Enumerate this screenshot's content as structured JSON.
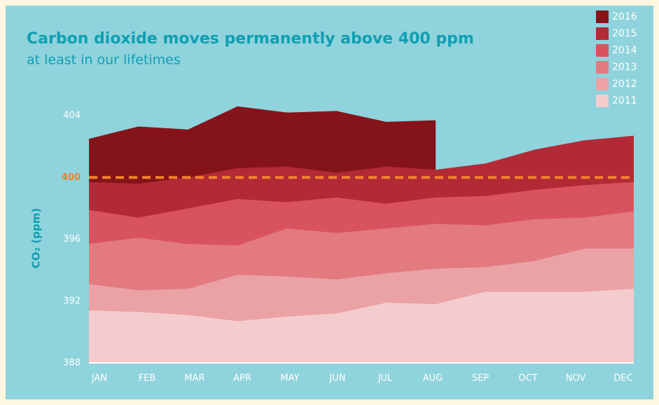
{
  "chart_data": {
    "type": "area",
    "title": "Carbon dioxide moves permanently above 400 ppm",
    "subtitle": "at least in our lifetimes",
    "y_label": "CO₂ (ppm)",
    "categories": [
      "JAN",
      "FEB",
      "MAR",
      "APR",
      "MAY",
      "JUN",
      "JUL",
      "AUG",
      "SEP",
      "OCT",
      "NOV",
      "DEC"
    ],
    "series": [
      {
        "name": "2016",
        "color": "#85141a",
        "values": [
          402.5,
          403.3,
          403.1,
          404.6,
          404.2,
          404.3,
          403.6,
          403.7,
          null,
          null,
          null,
          null
        ]
      },
      {
        "name": "2015",
        "color": "#b22a36",
        "values": [
          399.7,
          399.6,
          400.0,
          400.6,
          400.7,
          400.3,
          400.7,
          400.5,
          400.9,
          401.8,
          402.4,
          402.7
        ]
      },
      {
        "name": "2014",
        "color": "#d9535f",
        "values": [
          397.9,
          397.4,
          398.0,
          398.6,
          398.4,
          398.7,
          398.3,
          398.7,
          398.8,
          399.2,
          399.5,
          399.7
        ]
      },
      {
        "name": "2013",
        "color": "#e27a80",
        "values": [
          395.7,
          396.1,
          395.7,
          395.6,
          396.7,
          396.4,
          396.7,
          397.0,
          396.9,
          397.3,
          397.4,
          397.8
        ]
      },
      {
        "name": "2012",
        "color": "#eaa2a5",
        "values": [
          393.1,
          392.7,
          392.8,
          393.7,
          393.6,
          393.4,
          393.8,
          394.1,
          394.2,
          394.6,
          395.4,
          395.4
        ]
      },
      {
        "name": "2011",
        "color": "#f5cccd",
        "values": [
          391.4,
          391.3,
          391.1,
          390.7,
          391.0,
          391.2,
          391.9,
          391.8,
          392.6,
          392.6,
          392.6,
          392.8
        ]
      }
    ],
    "ylim": [
      388,
      404
    ],
    "yticks": [
      388,
      392,
      396,
      400,
      404
    ],
    "reference_line": 400,
    "reference_color": "#f0822d"
  }
}
